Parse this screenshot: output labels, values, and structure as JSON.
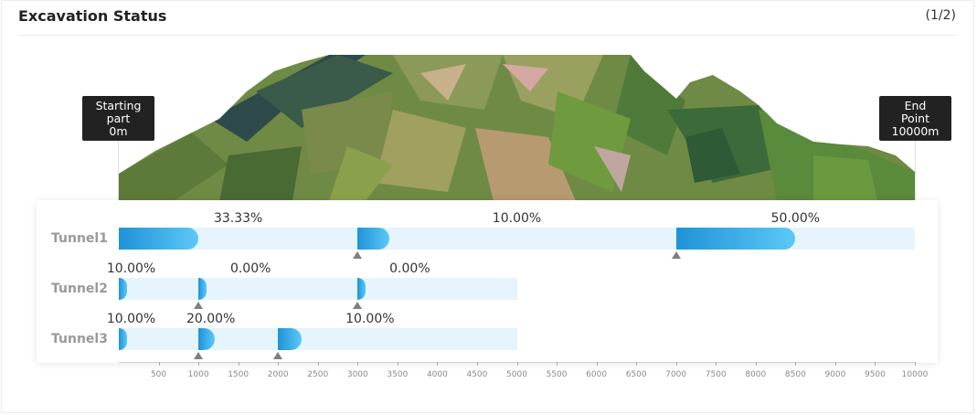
{
  "header": {
    "title": "Excavation Status",
    "pager": "(1/2)"
  },
  "markers": {
    "start": {
      "line1": "Starting",
      "line2": "part",
      "line3": "0m"
    },
    "end": {
      "line1": "End",
      "line2": "Point",
      "line3": "10000m"
    }
  },
  "axis": {
    "min": 0,
    "max": 10000,
    "ticks": [
      "500",
      "1000",
      "1500",
      "2000",
      "2500",
      "3000",
      "3500",
      "4000",
      "4500",
      "5000",
      "5500",
      "6000",
      "6500",
      "7000",
      "7500",
      "8000",
      "8500",
      "9000",
      "9500",
      "10000"
    ]
  },
  "tunnels": [
    {
      "label": "Tunnel1",
      "length_m": 10000,
      "sections": [
        {
          "start_m": 0,
          "end_m": 3000,
          "progress_pct": "33.33%",
          "progress": 0.3333
        },
        {
          "start_m": 3000,
          "end_m": 7000,
          "progress_pct": "10.00%",
          "progress": 0.1
        },
        {
          "start_m": 7000,
          "end_m": 10000,
          "progress_pct": "50.00%",
          "progress": 0.5
        }
      ],
      "markers_m": [
        3000,
        7000
      ]
    },
    {
      "label": "Tunnel2",
      "length_m": 5000,
      "sections": [
        {
          "start_m": 0,
          "end_m": 1000,
          "progress_pct": "10.00%",
          "progress": 0.1
        },
        {
          "start_m": 1000,
          "end_m": 3000,
          "progress_pct": "0.00%",
          "progress": 0.0
        },
        {
          "start_m": 3000,
          "end_m": 5000,
          "progress_pct": "0.00%",
          "progress": 0.0
        }
      ],
      "markers_m": [
        1000,
        3000
      ]
    },
    {
      "label": "Tunnel3",
      "length_m": 5000,
      "sections": [
        {
          "start_m": 0,
          "end_m": 1000,
          "progress_pct": "10.00%",
          "progress": 0.1
        },
        {
          "start_m": 1000,
          "end_m": 2000,
          "progress_pct": "20.00%",
          "progress": 0.2
        },
        {
          "start_m": 2000,
          "end_m": 5000,
          "progress_pct": "10.00%",
          "progress": 0.1
        }
      ],
      "markers_m": [
        1000,
        2000
      ]
    }
  ],
  "colors": {
    "track": "#e5f4fd",
    "bar_start": "#1f93d8",
    "bar_end": "#5cc8f7",
    "marker": "#7f7f7f"
  }
}
